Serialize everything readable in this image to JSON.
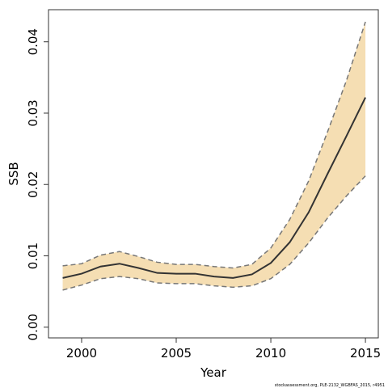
{
  "chart_data": {
    "type": "band",
    "ylabel": "SSB",
    "xlabel": "Year",
    "footnote": "stockassessment.org, PLE-2132_WGBFAS_2015, r4951",
    "x": [
      1999,
      2000,
      2001,
      2002,
      2003,
      2004,
      2005,
      2006,
      2007,
      2008,
      2009,
      2010,
      2011,
      2012,
      2013,
      2014,
      2015
    ],
    "values": [
      0.0069,
      0.0075,
      0.0085,
      0.0089,
      0.0083,
      0.0076,
      0.0075,
      0.0075,
      0.0071,
      0.0069,
      0.0074,
      0.009,
      0.0119,
      0.0161,
      0.0215,
      0.0268,
      0.0322
    ],
    "upper": [
      0.0086,
      0.0089,
      0.0101,
      0.0106,
      0.0099,
      0.0091,
      0.0088,
      0.0088,
      0.0085,
      0.0083,
      0.0088,
      0.0111,
      0.0151,
      0.0205,
      0.0274,
      0.0346,
      0.0428
    ],
    "lower": [
      0.0052,
      0.0059,
      0.0068,
      0.0071,
      0.0068,
      0.0062,
      0.0061,
      0.0061,
      0.0058,
      0.0056,
      0.0058,
      0.0068,
      0.0088,
      0.0118,
      0.0153,
      0.0184,
      0.0212
    ],
    "line_color": "#333333",
    "band_color": "#f5deb3",
    "bound_color": "#777777",
    "xlim": [
      1998.25,
      2015.68
    ],
    "xticks": [
      2000,
      2005,
      2010,
      2015
    ],
    "ylim": [
      -0.0015,
      0.0445
    ],
    "yticks": [
      {
        "value": 0,
        "label": "0.00"
      },
      0.01,
      0.02,
      0.03,
      0.04
    ]
  }
}
